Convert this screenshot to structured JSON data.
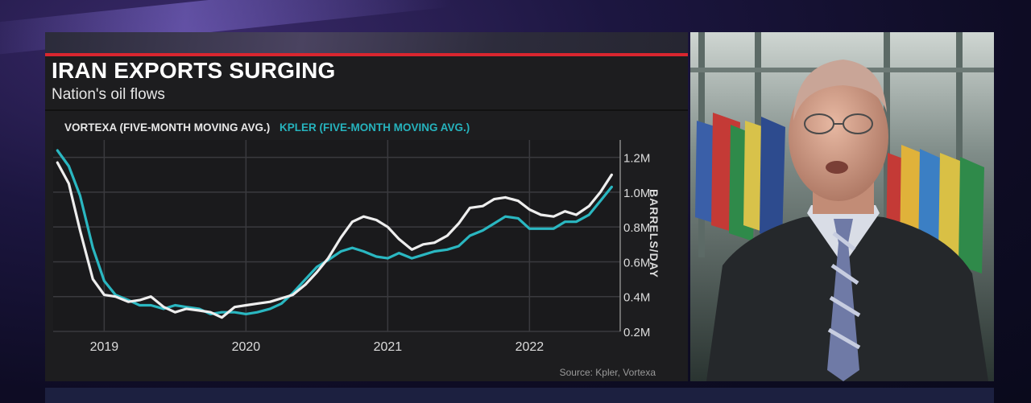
{
  "chart_data": {
    "type": "line",
    "title": "IRAN EXPORTS SURGING",
    "subtitle": "Nation's oil flows",
    "ylabel": "BARRELS/DAY",
    "source": "Source: Kpler, Vortexa",
    "ylim": [
      0.2,
      1.3
    ],
    "y_ticks": [
      0.2,
      0.4,
      0.6,
      0.8,
      1.0,
      1.2
    ],
    "y_tick_labels": [
      "0.2M",
      "0.4M",
      "0.6M",
      "0.8M",
      "1.0M",
      "1.2M"
    ],
    "x_ticks": [
      2019,
      2020,
      2021,
      2022
    ],
    "x_tick_labels": [
      "2019",
      "2020",
      "2021",
      "2022"
    ],
    "xlim": [
      2018.64,
      2022.64
    ],
    "grid": true,
    "series": [
      {
        "name": "VORTEXA (FIVE-MONTH MOVING AVG.)",
        "color": "#eeeeee",
        "x": [
          2018.67,
          2018.75,
          2018.83,
          2018.92,
          2019.0,
          2019.08,
          2019.17,
          2019.25,
          2019.33,
          2019.42,
          2019.5,
          2019.58,
          2019.67,
          2019.75,
          2019.83,
          2019.92,
          2020.0,
          2020.08,
          2020.17,
          2020.25,
          2020.33,
          2020.42,
          2020.5,
          2020.58,
          2020.67,
          2020.75,
          2020.83,
          2020.92,
          2021.0,
          2021.08,
          2021.17,
          2021.25,
          2021.33,
          2021.42,
          2021.5,
          2021.58,
          2021.67,
          2021.75,
          2021.83,
          2021.92,
          2022.0,
          2022.08,
          2022.17,
          2022.25,
          2022.33,
          2022.42,
          2022.5,
          2022.58
        ],
        "y": [
          1.17,
          1.05,
          0.78,
          0.5,
          0.41,
          0.4,
          0.37,
          0.38,
          0.4,
          0.34,
          0.31,
          0.33,
          0.32,
          0.31,
          0.28,
          0.34,
          0.35,
          0.36,
          0.37,
          0.39,
          0.41,
          0.47,
          0.54,
          0.62,
          0.74,
          0.83,
          0.86,
          0.84,
          0.8,
          0.73,
          0.67,
          0.7,
          0.71,
          0.75,
          0.82,
          0.91,
          0.92,
          0.96,
          0.97,
          0.95,
          0.9,
          0.87,
          0.86,
          0.89,
          0.87,
          0.92,
          1.0,
          1.1
        ]
      },
      {
        "name": "KPLER (FIVE-MONTH MOVING AVG.)",
        "color": "#2ab7c1",
        "x": [
          2018.67,
          2018.75,
          2018.83,
          2018.92,
          2019.0,
          2019.08,
          2019.17,
          2019.25,
          2019.33,
          2019.42,
          2019.5,
          2019.58,
          2019.67,
          2019.75,
          2019.83,
          2019.92,
          2020.0,
          2020.08,
          2020.17,
          2020.25,
          2020.33,
          2020.42,
          2020.5,
          2020.58,
          2020.67,
          2020.75,
          2020.83,
          2020.92,
          2021.0,
          2021.08,
          2021.17,
          2021.25,
          2021.33,
          2021.42,
          2021.5,
          2021.58,
          2021.67,
          2021.75,
          2021.83,
          2021.92,
          2022.0,
          2022.08,
          2022.17,
          2022.25,
          2022.33,
          2022.42,
          2022.5,
          2022.58
        ],
        "y": [
          1.24,
          1.15,
          0.98,
          0.68,
          0.49,
          0.41,
          0.38,
          0.35,
          0.35,
          0.33,
          0.35,
          0.34,
          0.33,
          0.3,
          0.31,
          0.31,
          0.3,
          0.31,
          0.33,
          0.36,
          0.42,
          0.5,
          0.57,
          0.61,
          0.66,
          0.68,
          0.66,
          0.63,
          0.62,
          0.65,
          0.62,
          0.64,
          0.66,
          0.67,
          0.69,
          0.75,
          0.78,
          0.82,
          0.86,
          0.85,
          0.79,
          0.79,
          0.79,
          0.83,
          0.83,
          0.87,
          0.95,
          1.03
        ]
      }
    ]
  },
  "colors": {
    "panel_bg": "#1d1d1f",
    "accent_red": "#d9262f",
    "grid": "#3a3a3e",
    "axis_text": "#dcdcdc"
  }
}
